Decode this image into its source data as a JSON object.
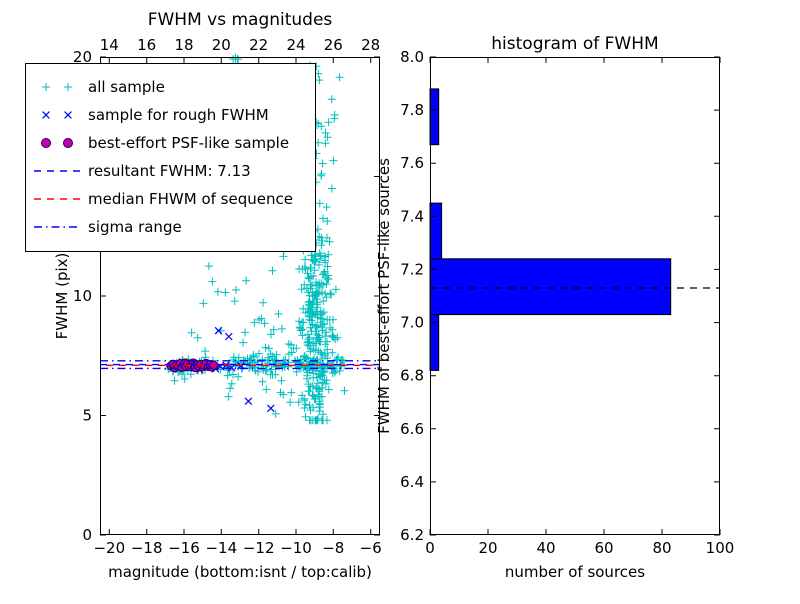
{
  "figure": {
    "background": "#ffffff"
  },
  "chart_data": [
    {
      "type": "scatter",
      "title": "FWHM vs magnitudes",
      "xlabel": "magnitude (bottom:isnt / top:calib)",
      "ylabel": "FWHM (pix)",
      "xlim": [
        -20.5,
        -5.5
      ],
      "ylim": [
        0,
        20
      ],
      "xticks": [
        -20,
        -18,
        -16,
        -14,
        -12,
        -10,
        -8,
        -6
      ],
      "xticks_top": [
        14,
        16,
        18,
        20,
        22,
        24,
        26,
        28
      ],
      "top_axis_offset": 34,
      "yticks": [
        0,
        5,
        10,
        15,
        20
      ],
      "grid": false,
      "legend_position": "upper left",
      "seed": 7,
      "series": [
        {
          "name": "all sample",
          "marker": "plus",
          "color": "#00bfbf",
          "clusters": [
            {
              "n": 175,
              "x": [
                "uniform",
                -16.9,
                -7.4
              ],
              "y": [
                "normal",
                7.1,
                0.22,
                6.45,
                7.85
              ]
            },
            {
              "n": 55,
              "x": [
                "uniform",
                -12.9,
                -7.5
              ],
              "y": [
                "normal",
                7.45,
                0.75,
                5.7,
                9.8
              ]
            },
            {
              "n": 240,
              "x": [
                "normal",
                -8.9,
                0.5,
                -10.3,
                -7.4
              ],
              "y": [
                "normal",
                8.3,
                2.3,
                4.8,
                19.9
              ]
            },
            {
              "n": 60,
              "x": [
                "normal",
                -8.8,
                0.45,
                -9.8,
                -7.6
              ],
              "y": [
                "uniform",
                9.0,
                19.8
              ]
            },
            {
              "n": 22,
              "x": [
                "uniform",
                -15.9,
                -10.3
              ],
              "y": [
                "uniform",
                7.6,
                12.4
              ]
            },
            {
              "n": 5,
              "x": [
                "uniform",
                -13.4,
                -12.9
              ],
              "y": [
                "uniform",
                19.9,
                20.0
              ]
            },
            {
              "n": 5,
              "x": [
                "uniform",
                -11.6,
                -10.3
              ],
              "y": [
                "uniform",
                5.0,
                6.2
              ]
            },
            {
              "n": 3,
              "x": [
                "uniform",
                -13.9,
                -13.2
              ],
              "y": [
                "uniform",
                5.6,
                6.4
              ]
            }
          ]
        },
        {
          "name": "sample for rough FWHM",
          "marker": "x",
          "color": "#0000ff",
          "points": [
            [
              -16.6,
              7.05
            ],
            [
              -16.3,
              6.95
            ],
            [
              -16.05,
              7.1
            ],
            [
              -15.75,
              7.0
            ],
            [
              -15.45,
              7.15
            ],
            [
              -15.15,
              6.9
            ],
            [
              -14.9,
              7.05
            ],
            [
              -14.6,
              7.1
            ],
            [
              -14.3,
              6.95
            ],
            [
              -14.05,
              7.05
            ],
            [
              -13.75,
              7.1
            ],
            [
              -13.45,
              7.0
            ],
            [
              -12.95,
              7.08
            ],
            [
              -14.15,
              8.55
            ],
            [
              -13.6,
              8.3
            ],
            [
              -12.55,
              5.6
            ],
            [
              -11.35,
              5.3
            ]
          ]
        },
        {
          "name": "best-effort PSF-like sample",
          "marker": "circle",
          "color": "#bf00bf",
          "edge_color": "#330033",
          "points": [
            [
              -16.7,
              7.08
            ],
            [
              -16.6,
              7.15
            ],
            [
              -16.5,
              7.0
            ],
            [
              -16.4,
              7.1
            ],
            [
              -16.3,
              7.05
            ],
            [
              -16.2,
              7.18
            ],
            [
              -16.1,
              7.02
            ],
            [
              -16.0,
              7.12
            ],
            [
              -15.95,
              7.2
            ],
            [
              -15.9,
              7.06
            ],
            [
              -15.8,
              7.16
            ],
            [
              -15.7,
              7.04
            ],
            [
              -15.6,
              7.1
            ],
            [
              -15.5,
              7.2
            ],
            [
              -15.45,
              7.08
            ],
            [
              -15.4,
              7.0
            ],
            [
              -15.3,
              7.12
            ],
            [
              -15.2,
              7.06
            ],
            [
              -15.1,
              7.15
            ],
            [
              -15.0,
              7.03
            ],
            [
              -14.9,
              7.1
            ],
            [
              -14.8,
              7.18
            ],
            [
              -14.7,
              7.05
            ],
            [
              -14.6,
              7.12
            ],
            [
              -14.5,
              7.02
            ],
            [
              -14.4,
              7.1
            ]
          ]
        }
      ],
      "hlines": [
        {
          "name": "resultant-fwhm-line",
          "label": "resultant FWHM: 7.13",
          "y": 7.13,
          "color": "#0000ff",
          "style": "dashed"
        },
        {
          "name": "median-fwhm-line",
          "label": "median FHWM of sequence",
          "y": 7.1,
          "color": "#ff0000",
          "style": "dashed"
        },
        {
          "name": "sigma-range-upper-line",
          "label": "sigma range",
          "y": 7.29,
          "color": "#0000ff",
          "style": "dashdot"
        },
        {
          "name": "sigma-range-lower-line",
          "label": "sigma range",
          "y": 6.97,
          "color": "#0000ff",
          "style": "dashdot"
        }
      ],
      "legend_entries": [
        {
          "label": "all sample",
          "type": "marker",
          "marker": "plus",
          "color": "#00bfbf"
        },
        {
          "label": "sample for rough FWHM",
          "type": "marker",
          "marker": "x",
          "color": "#0000ff"
        },
        {
          "label": "best-effort PSF-like sample",
          "type": "marker",
          "marker": "circle",
          "color": "#bf00bf",
          "edge_color": "#330033"
        },
        {
          "label": "resultant FWHM: 7.13",
          "type": "line",
          "style": "dashed",
          "color": "#0000ff"
        },
        {
          "label": "median FHWM of sequence",
          "type": "line",
          "style": "dashed",
          "color": "#ff0000"
        },
        {
          "label": "sigma range",
          "type": "line",
          "style": "dashdot",
          "color": "#0000ff"
        }
      ]
    },
    {
      "type": "bar",
      "orientation": "horizontal",
      "title": "histogram of FWHM",
      "xlabel": "number of sources",
      "ylabel": "FWHM of best-effort PSF-like sources",
      "xlim": [
        0,
        100
      ],
      "ylim": [
        6.2,
        8.0
      ],
      "xticks": [
        0,
        20,
        40,
        60,
        80,
        100
      ],
      "yticks": [
        6.2,
        6.4,
        6.6,
        6.8,
        7.0,
        7.2,
        7.4,
        7.6,
        7.8,
        8.0
      ],
      "bar_color": "#0000ff",
      "bar_edge_color": "#000000",
      "bars": [
        {
          "y_start": 6.82,
          "y_end": 7.03,
          "count": 3
        },
        {
          "y_start": 7.03,
          "y_end": 7.24,
          "count": 83
        },
        {
          "y_start": 7.24,
          "y_end": 7.45,
          "count": 4
        },
        {
          "y_start": 7.67,
          "y_end": 7.88,
          "count": 3
        }
      ],
      "hline": {
        "y": 7.13,
        "color": "#000000",
        "style": "dashed"
      }
    }
  ]
}
